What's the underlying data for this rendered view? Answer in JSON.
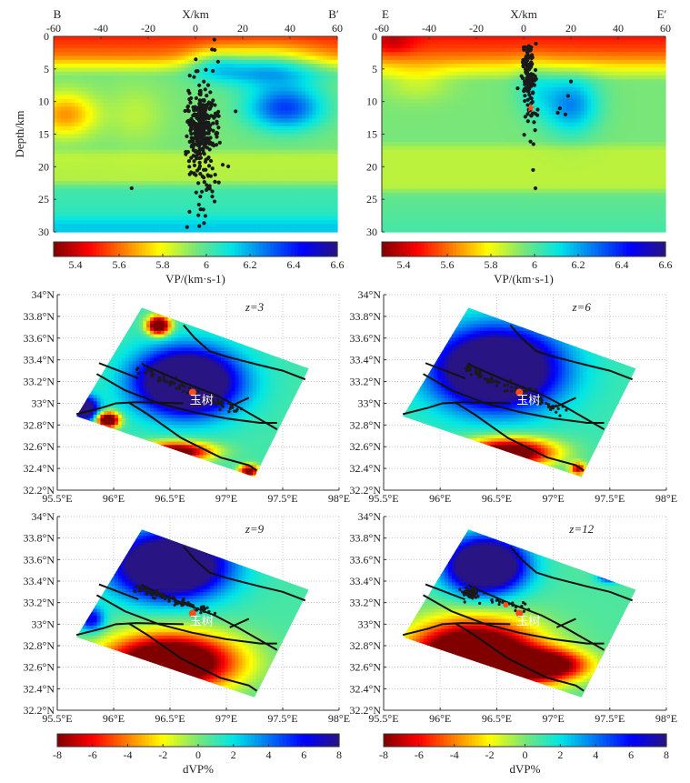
{
  "chart_data": [
    {
      "id": "profile-bb",
      "type": "heatmap",
      "start_label": "B",
      "end_label": "B′",
      "xlabel": "X/km",
      "ylabel": "Depth/km",
      "xlim": [
        -60,
        60
      ],
      "ylim": [
        0,
        30
      ],
      "xticks": [
        "-60",
        "-40",
        "-20",
        "0",
        "20",
        "40",
        "60"
      ],
      "yticks": [
        "0",
        "5",
        "10",
        "15",
        "20",
        "25",
        "30"
      ],
      "layer_profile": [
        [
          0,
          5.5
        ],
        [
          1.5,
          5.55
        ],
        [
          3,
          5.62
        ],
        [
          4.5,
          5.8
        ],
        [
          6,
          5.95
        ],
        [
          17,
          5.95
        ],
        [
          18.5,
          5.87
        ],
        [
          22,
          5.88
        ],
        [
          23.5,
          6.02
        ],
        [
          27,
          6.05
        ],
        [
          29,
          6.15
        ],
        [
          30,
          6.15
        ]
      ],
      "anomalies": [
        {
          "x": 30,
          "depth": 4.5,
          "sx": 16,
          "sy": 2.2,
          "amp": 0.32
        },
        {
          "x": 8,
          "depth": 4,
          "sx": 8,
          "sy": 1.6,
          "amp": 0.2
        },
        {
          "x": 38,
          "depth": 11,
          "sx": 11,
          "sy": 2.3,
          "amp": 0.4
        },
        {
          "x": -55,
          "depth": 12,
          "sx": 9,
          "sy": 2.3,
          "amp": -0.3
        },
        {
          "x": -25,
          "depth": 12,
          "sx": 8,
          "sy": 3,
          "amp": -0.08
        }
      ],
      "events": [
        {
          "x": 2.5,
          "depth": 14,
          "sx": 2.6,
          "sy": 2.8,
          "n": 260,
          "dist": "normal"
        },
        {
          "x": 3,
          "depth": 17,
          "sx": 4,
          "sy": 7,
          "n": 110,
          "dist": "normal"
        },
        {
          "x": -27,
          "depth": 23.3,
          "n": 1,
          "dist": "point"
        },
        {
          "x": 17,
          "depth": 11.5,
          "n": 1,
          "dist": "point"
        },
        {
          "x": 8,
          "depth": 0.5,
          "n": 1,
          "dist": "point"
        },
        {
          "x": 7,
          "depth": 2,
          "n": 1,
          "dist": "point"
        }
      ],
      "colorbar": {
        "label": "VP/(km·s-1)",
        "min": 5.3,
        "max": 6.6,
        "ticks": [
          "5.4",
          "5.6",
          "5.8",
          "6",
          "6.2",
          "6.4",
          "6.6"
        ]
      }
    },
    {
      "id": "profile-ee",
      "type": "heatmap",
      "start_label": "E",
      "end_label": "E′",
      "xlabel": "X/km",
      "ylabel": "",
      "xlim": [
        -60,
        60
      ],
      "ylim": [
        0,
        30
      ],
      "xticks": [
        "-60",
        "-40",
        "-20",
        "0",
        "20",
        "40",
        "60"
      ],
      "yticks": [
        "0",
        "5",
        "10",
        "15",
        "20",
        "25",
        "30"
      ],
      "layer_profile": [
        [
          0,
          5.48
        ],
        [
          2,
          5.55
        ],
        [
          3.5,
          5.65
        ],
        [
          5,
          5.8
        ],
        [
          7,
          5.95
        ],
        [
          16,
          5.95
        ],
        [
          17.5,
          5.87
        ],
        [
          23,
          5.87
        ],
        [
          24.5,
          5.98
        ],
        [
          30,
          6.02
        ]
      ],
      "anomalies": [
        {
          "x": 20,
          "depth": 10.5,
          "sx": 8,
          "sy": 3,
          "amp": 0.3
        },
        {
          "x": 5,
          "depth": 8,
          "sx": 6,
          "sy": 3,
          "amp": 0.12
        },
        {
          "x": -55,
          "depth": 1,
          "sx": 6,
          "sy": 1.2,
          "amp": -0.12
        },
        {
          "x": -45,
          "depth": 7,
          "sx": 10,
          "sy": 2,
          "amp": -0.1
        }
      ],
      "events": [
        {
          "x": 2,
          "depth": 6,
          "sx": 1.3,
          "sy": 2.8,
          "n": 150,
          "dist": "normal"
        },
        {
          "x": 3,
          "depth": 13,
          "sx": 2,
          "sy": 3,
          "n": 12,
          "dist": "normal"
        },
        {
          "x": 18,
          "depth": 9,
          "sx": 3,
          "sy": 2,
          "n": 5,
          "dist": "normal"
        },
        {
          "x": 4,
          "depth": 20.5,
          "n": 1,
          "dist": "point"
        },
        {
          "x": 5,
          "depth": 23.3,
          "n": 1,
          "dist": "point"
        }
      ],
      "mainshock": {
        "x": 3,
        "depth": 11
      },
      "colorbar": {
        "label": "VP/(km·s-1)",
        "min": 5.3,
        "max": 6.6,
        "ticks": [
          "5.4",
          "5.6",
          "5.8",
          "6",
          "6.2",
          "6.4",
          "6.6"
        ]
      }
    },
    {
      "id": "map-z3",
      "type": "heatmap",
      "depth_label": "z=3",
      "base": 0.9,
      "blobs": [
        {
          "lon": 96.65,
          "lat": 33.2,
          "sx": 0.3,
          "sy": 0.2,
          "amp": 14
        },
        {
          "lon": 96.4,
          "lat": 33.72,
          "sx": 0.07,
          "sy": 0.06,
          "amp": -13
        },
        {
          "lon": 95.95,
          "lat": 32.85,
          "sx": 0.07,
          "sy": 0.05,
          "amp": -13
        },
        {
          "lon": 96.55,
          "lat": 32.56,
          "sx": 0.22,
          "sy": 0.06,
          "amp": -11
        },
        {
          "lon": 97.2,
          "lat": 32.38,
          "sx": 0.06,
          "sy": 0.04,
          "amp": -10
        },
        {
          "lon": 95.75,
          "lat": 32.95,
          "sx": 0.08,
          "sy": 0.08,
          "amp": 10
        }
      ],
      "events": [
        {
          "lon": 96.65,
          "lat": 33.15,
          "along": [
            [
              96.2,
              33.32
            ],
            [
              97.12,
              32.93
            ]
          ],
          "spread": 0.025,
          "n": 70
        }
      ]
    },
    {
      "id": "map-z6",
      "type": "heatmap",
      "depth_label": "z=6",
      "base": 1.0,
      "blobs": [
        {
          "lon": 96.5,
          "lat": 33.32,
          "sx": 0.36,
          "sy": 0.24,
          "amp": 14
        },
        {
          "lon": 96.6,
          "lat": 32.55,
          "sx": 0.28,
          "sy": 0.09,
          "amp": -12
        },
        {
          "lon": 97.22,
          "lat": 32.4,
          "sx": 0.05,
          "sy": 0.04,
          "amp": -8
        }
      ],
      "events": [
        {
          "along": [
            [
              96.2,
              33.33
            ],
            [
              97.1,
              32.93
            ]
          ],
          "spread": 0.03,
          "n": 80
        }
      ]
    },
    {
      "id": "map-z9",
      "type": "heatmap",
      "depth_label": "z=9",
      "base": 0.8,
      "blobs": [
        {
          "lon": 96.5,
          "lat": 33.55,
          "sx": 0.33,
          "sy": 0.2,
          "amp": 14
        },
        {
          "lon": 96.5,
          "lat": 32.65,
          "sx": 0.4,
          "sy": 0.18,
          "amp": -14
        },
        {
          "lon": 95.8,
          "lat": 33.05,
          "sx": 0.08,
          "sy": 0.08,
          "amp": 6
        }
      ],
      "events": [
        {
          "along": [
            [
              96.2,
              33.34
            ],
            [
              96.9,
              33.1
            ]
          ],
          "spread": 0.025,
          "n": 90
        }
      ]
    },
    {
      "id": "map-z12",
      "type": "heatmap",
      "depth_label": "z=12",
      "base": 0.7,
      "blobs": [
        {
          "lon": 96.4,
          "lat": 33.55,
          "sx": 0.23,
          "sy": 0.17,
          "amp": 14
        },
        {
          "lon": 97.5,
          "lat": 33.45,
          "sx": 0.07,
          "sy": 0.04,
          "amp": 6
        },
        {
          "lon": 96.3,
          "lat": 32.7,
          "sx": 0.38,
          "sy": 0.22,
          "amp": -16
        },
        {
          "lon": 96.95,
          "lat": 32.62,
          "sx": 0.25,
          "sy": 0.1,
          "amp": -10
        }
      ],
      "events": [
        {
          "along": [
            [
              96.22,
              33.3
            ],
            [
              96.3,
              33.28
            ]
          ],
          "spread": 0.025,
          "n": 60
        },
        {
          "along": [
            [
              96.3,
              33.28
            ],
            [
              96.75,
              33.14
            ]
          ],
          "spread": 0.03,
          "n": 20
        }
      ],
      "mainshock": {
        "lon": 96.58,
        "lat": 33.18
      }
    }
  ],
  "map_common": {
    "lon_ticks": [
      "95.5°E",
      "96°E",
      "96.5°E",
      "97°E",
      "97.5°E",
      "98°E"
    ],
    "lat_ticks": [
      "34°N",
      "33.8°N",
      "33.6°N",
      "33.4°N",
      "33.2°N",
      "33°N",
      "32.8°N",
      "32.6°N",
      "32.4°N",
      "32.2°N"
    ],
    "lon_range": [
      95.5,
      98
    ],
    "lat_range": [
      32.2,
      34
    ],
    "study_area": [
      [
        96.25,
        33.88
      ],
      [
        97.73,
        33.32
      ],
      [
        97.25,
        32.32
      ],
      [
        95.67,
        32.88
      ]
    ],
    "city": {
      "name": "玉树",
      "lon": 96.7,
      "lat": 33.1
    },
    "faults": [
      [
        [
          96.62,
          33.72
        ],
        [
          96.72,
          33.6
        ],
        [
          96.85,
          33.48
        ],
        [
          97.0,
          33.43
        ],
        [
          97.3,
          33.35
        ],
        [
          97.5,
          33.3
        ],
        [
          97.7,
          33.22
        ]
      ],
      [
        [
          95.87,
          33.37
        ],
        [
          96.22,
          33.23
        ]
      ],
      [
        [
          96.25,
          33.37
        ],
        [
          96.27,
          33.35
        ],
        [
          96.6,
          33.2
        ],
        [
          96.9,
          33.08
        ],
        [
          97.1,
          32.97
        ],
        [
          97.45,
          32.76
        ]
      ],
      [
        [
          95.85,
          33.27
        ],
        [
          96.1,
          33.12
        ],
        [
          96.4,
          33.0
        ],
        [
          96.7,
          32.92
        ],
        [
          97.0,
          32.86
        ],
        [
          97.3,
          32.82
        ],
        [
          97.45,
          32.82
        ]
      ],
      [
        [
          95.67,
          32.9
        ],
        [
          95.9,
          32.96
        ],
        [
          96.02,
          33.0
        ],
        [
          96.2,
          33.01
        ],
        [
          96.62,
          33.0
        ]
      ],
      [
        [
          96.13,
          33.01
        ],
        [
          96.3,
          32.9
        ],
        [
          96.6,
          32.68
        ],
        [
          96.95,
          32.5
        ],
        [
          97.2,
          32.43
        ],
        [
          97.27,
          32.38
        ]
      ],
      [
        [
          97.03,
          32.97
        ],
        [
          97.2,
          33.05
        ]
      ]
    ],
    "colorbar": {
      "label": "dVP%",
      "min": -8,
      "max": 8,
      "ticks": [
        "-8",
        "-6",
        "-4",
        "-2",
        "0",
        "2",
        "4",
        "6",
        "8"
      ]
    }
  },
  "colors": {
    "mainshock": "#ff4a1a",
    "event": "#1a1a1a",
    "fault": "#111111",
    "grid": "#c8c8c8"
  }
}
